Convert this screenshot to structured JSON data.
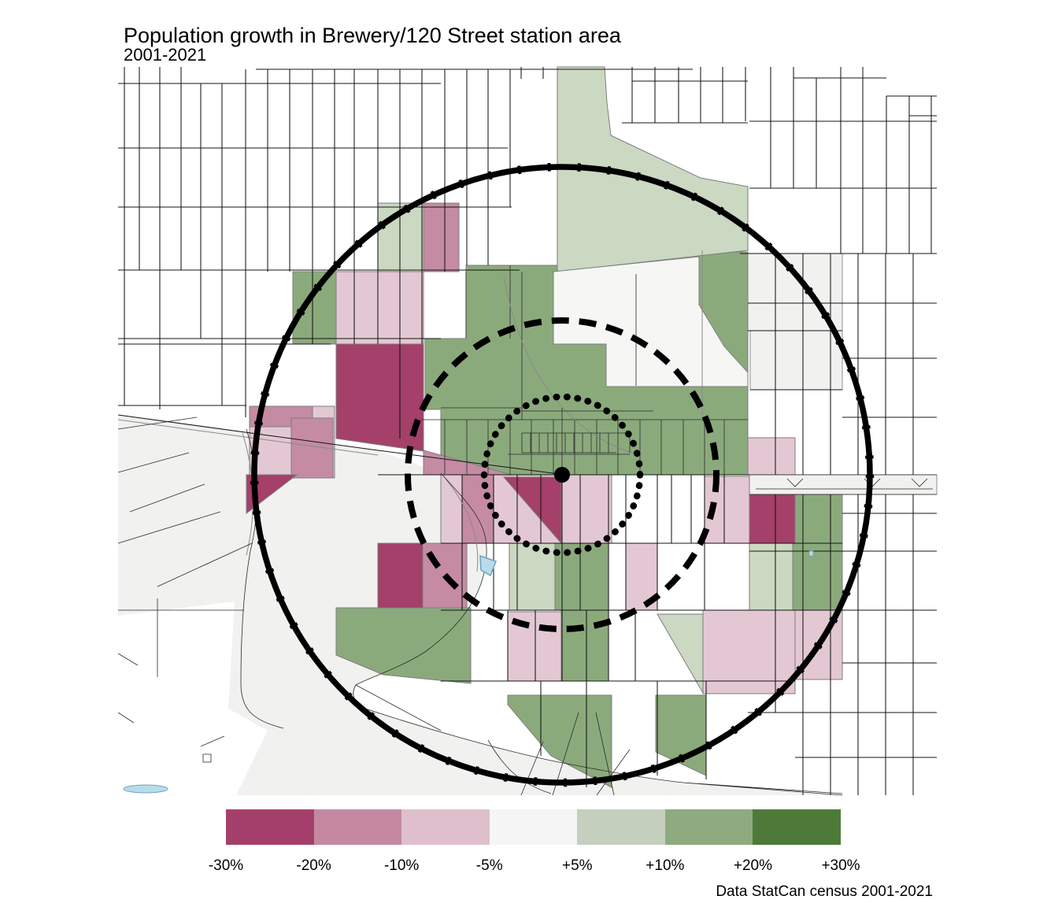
{
  "header": {
    "title": "Population growth in Brewery/120 Street station area",
    "subtitle": "2001-2021"
  },
  "caption": "Data StatCan census 2001-2021",
  "legend": {
    "labels": [
      "-30%",
      "-20%",
      "-10%",
      "-5%",
      "+5%",
      "+10%",
      "+20%",
      "+30%"
    ],
    "swatch_colors": [
      "#a43f6b",
      "#c489a0",
      "#dfbfcc",
      "#f6f5f6",
      "#c5cfbe",
      "#8dab7f",
      "#4d7a38"
    ]
  },
  "palette": {
    "magenta": "#a44069",
    "medium_pink": "#c58ba3",
    "light_pink": "#e3c8d3",
    "light_green": "#cbd8c2",
    "green": "#8baa7c",
    "near_white": "#f6f6f4",
    "valley_gray": "#f1f1ef",
    "water_blue": "#b9dcea",
    "water_outline": "#6ba3c0",
    "road": "#141414"
  },
  "map": {
    "rings": [
      {
        "name": "inner-walkshed-ring",
        "style": "dotted"
      },
      {
        "name": "middle-walkshed-ring",
        "style": "dashed"
      },
      {
        "name": "outer-walkshed-ring",
        "style": "solid"
      }
    ],
    "station_marker": "filled-black-dot"
  }
}
